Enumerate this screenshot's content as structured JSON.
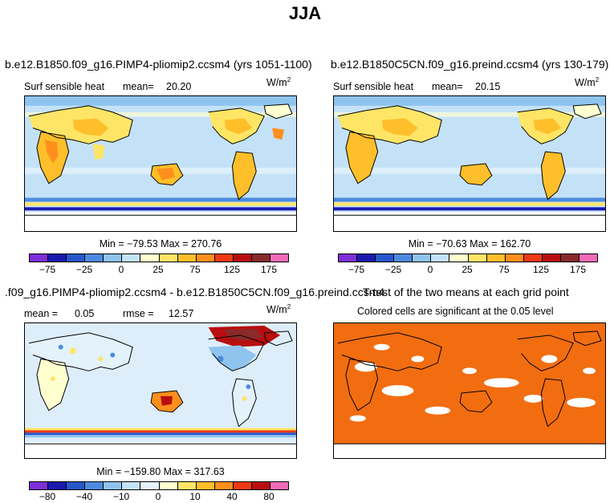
{
  "page_title": "JJA",
  "panels": [
    {
      "title": "b.e12.B1850.f09_g16.PIMP4-pliomip2.ccsm4 (yrs 1051-1100)",
      "variable": "Surf sensible heat",
      "mean_label": "mean=",
      "mean": "20.20",
      "units": "W/m",
      "units_exp": "2",
      "minmax": "Min = −79.53 Max = 270.76",
      "colorbar_ticks": [
        "−75",
        "−25",
        "0",
        "25",
        "75",
        "125",
        "175"
      ]
    },
    {
      "title": "b.e12.B1850C5CN.f09_g16.preind.ccsm4 (yrs 130-179)",
      "variable": "Surf sensible heat",
      "mean_label": "mean=",
      "mean": "20.15",
      "units": "W/m",
      "units_exp": "2",
      "minmax": "Min = −70.63 Max = 162.70",
      "colorbar_ticks": [
        "−75",
        "−25",
        "0",
        "25",
        "75",
        "125",
        "175"
      ]
    },
    {
      "title": ".f09_g16.PIMP4-pliomip2.ccsm4 - b.e12.B1850C5CN.f09_g16.preind.ccsm4",
      "mean_label": "mean =",
      "mean": "0.05",
      "rmse_label": "rmse =",
      "rmse": "12.57",
      "units": "W/m",
      "units_exp": "2",
      "minmax": "Min = −159.80 Max = 317.63",
      "colorbar_ticks": [
        "−80",
        "−40",
        "−10",
        "0",
        "10",
        "40",
        "80"
      ]
    },
    {
      "title": "T-test of the two means at each grid point",
      "subtitle": "Colored cells are significant at the 0.05 level"
    }
  ],
  "colors": {
    "abs_scale": [
      "#7e2fd8",
      "#1a1ab0",
      "#2757cc",
      "#4d8be0",
      "#8fc4ef",
      "#c4e2f7",
      "#ffffd0",
      "#ffe566",
      "#ffbf2a",
      "#ff8f1c",
      "#ee3a14",
      "#b80e0e",
      "#8a2a2a",
      "#f26bb8"
    ],
    "diff_scale": [
      "#7e2fd8",
      "#1a1ab0",
      "#2757cc",
      "#4d8be0",
      "#8fc4ef",
      "#c4e2f7",
      "#e3f2fb",
      "#ffffd0",
      "#ffe566",
      "#ffbf2a",
      "#ff8f1c",
      "#ee3a14",
      "#b80e0e",
      "#f26bb8"
    ],
    "ocean_abs": "#c4e2f7",
    "ocean_diff": "#ddeefa",
    "ttest": "#f26d10"
  }
}
